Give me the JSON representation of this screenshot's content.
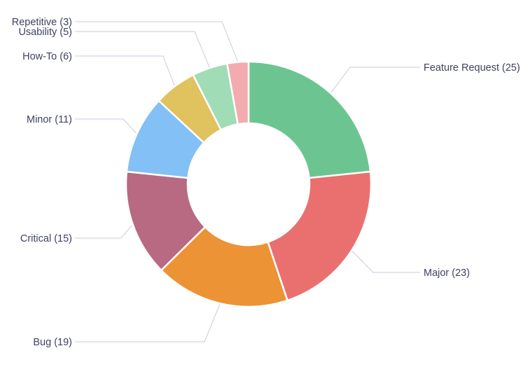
{
  "chart_data": {
    "type": "pie",
    "subtype": "donut",
    "title": "",
    "legend": "none",
    "total": 107,
    "start_angle_deg": 0,
    "direction": "clockwise",
    "inner_radius_ratio": 0.5,
    "background": "#ffffff",
    "label_color": "#3e4163",
    "leader_line_color": "#c9cbe0",
    "slice_border_color": "#ffffff",
    "label_format": "{label} ({value})",
    "slices": [
      {
        "label": "Feature Request",
        "value": 25,
        "display": "Feature Request (25)",
        "color": "#6cc591"
      },
      {
        "label": "Major",
        "value": 23,
        "display": "Major (23)",
        "color": "#ea7070"
      },
      {
        "label": "Bug",
        "value": 19,
        "display": "Bug (19)",
        "color": "#ec9336"
      },
      {
        "label": "Critical",
        "value": 15,
        "display": "Critical (15)",
        "color": "#b76a81"
      },
      {
        "label": "Minor",
        "value": 11,
        "display": "Minor (11)",
        "color": "#82c0f5"
      },
      {
        "label": "How-To",
        "value": 6,
        "display": "How-To (6)",
        "color": "#e0c25e"
      },
      {
        "label": "Usability",
        "value": 5,
        "display": "Usability (5)",
        "color": "#a0dcb6"
      },
      {
        "label": "Repetitive",
        "value": 3,
        "display": "Repetitive (3)",
        "color": "#f2abae"
      }
    ]
  }
}
